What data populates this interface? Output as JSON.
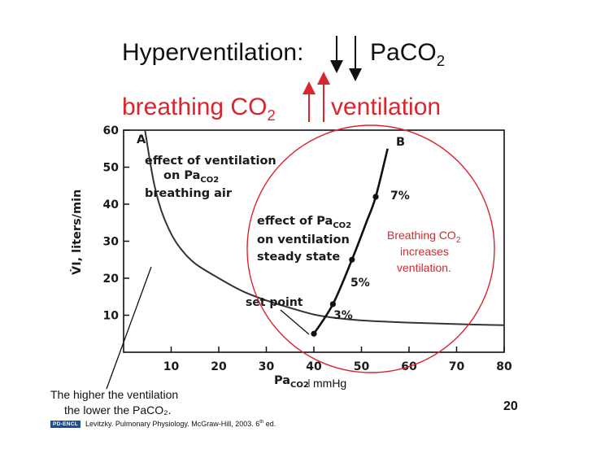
{
  "slide": {
    "title_prefix": "Hyperventilation:",
    "title_suffix": "PaCO",
    "title_suffix_sub": "2",
    "line2_left": "breathing CO",
    "line2_left_sub": "2",
    "line2_right": "ventilation",
    "page_number": "20",
    "note_line1": "The higher the ventilation",
    "note_line2": "the lower the PaCO₂.",
    "unit_label": "mmHg",
    "red_note_line1": "Breathing CO",
    "red_note_line1_sub": "2",
    "red_note_line2": "increases",
    "red_note_line3": "ventilation.",
    "citation": "Levitzky. Pulmonary Physiology. McGraw-Hill, 2003. 6",
    "citation_sup": "th",
    "citation_end": " ed.",
    "logo_text": "PD-ENCL",
    "colors": {
      "accent_red": "#d9262e",
      "text": "#111111"
    }
  },
  "chart_data": {
    "type": "line",
    "title": "",
    "xlabel": "Pa",
    "xlabel_sub": "CO2",
    "ylabel": "V̇I, liters/min",
    "xlim": [
      0,
      80
    ],
    "ylim": [
      0,
      60
    ],
    "x_ticks": [
      "10",
      "20",
      "30",
      "40",
      "50",
      "60",
      "70",
      "80"
    ],
    "y_ticks": [
      "10",
      "20",
      "30",
      "40",
      "50",
      "60"
    ],
    "grid": false,
    "series": [
      {
        "name": "A",
        "points": [
          [
            4.5,
            60
          ],
          [
            5.5,
            52
          ],
          [
            6.5,
            45
          ],
          [
            8,
            38
          ],
          [
            10,
            32
          ],
          [
            12,
            28
          ],
          [
            15,
            24
          ],
          [
            20,
            20
          ],
          [
            25,
            16.5
          ],
          [
            30,
            14
          ],
          [
            35,
            12
          ],
          [
            40,
            10.2
          ],
          [
            45,
            9.2
          ],
          [
            50,
            8.6
          ],
          [
            60,
            8
          ],
          [
            70,
            7.6
          ],
          [
            80,
            7.3
          ]
        ]
      },
      {
        "name": "B",
        "points": [
          [
            40,
            5
          ],
          [
            44,
            13
          ],
          [
            48,
            25
          ],
          [
            51,
            35
          ],
          [
            53,
            42
          ],
          [
            55.5,
            55
          ]
        ]
      }
    ],
    "point_labels": [
      {
        "text": "set point",
        "x": 40,
        "y": 5
      },
      {
        "text": "3%",
        "x": 44,
        "y": 13
      },
      {
        "text": "5%",
        "x": 48,
        "y": 25
      },
      {
        "text": "7%",
        "x": 53,
        "y": 42
      }
    ],
    "annotations": {
      "vent_line1": "effect of ventilation",
      "vent_line2": "on Pa",
      "vent_line2_sub": "CO2",
      "vent_line3": "breathing air",
      "pco2_line1": "effect of Pa",
      "pco2_line1_sub": "CO2",
      "pco2_line2": "on ventilation",
      "pco2_line3": "steady state"
    }
  }
}
